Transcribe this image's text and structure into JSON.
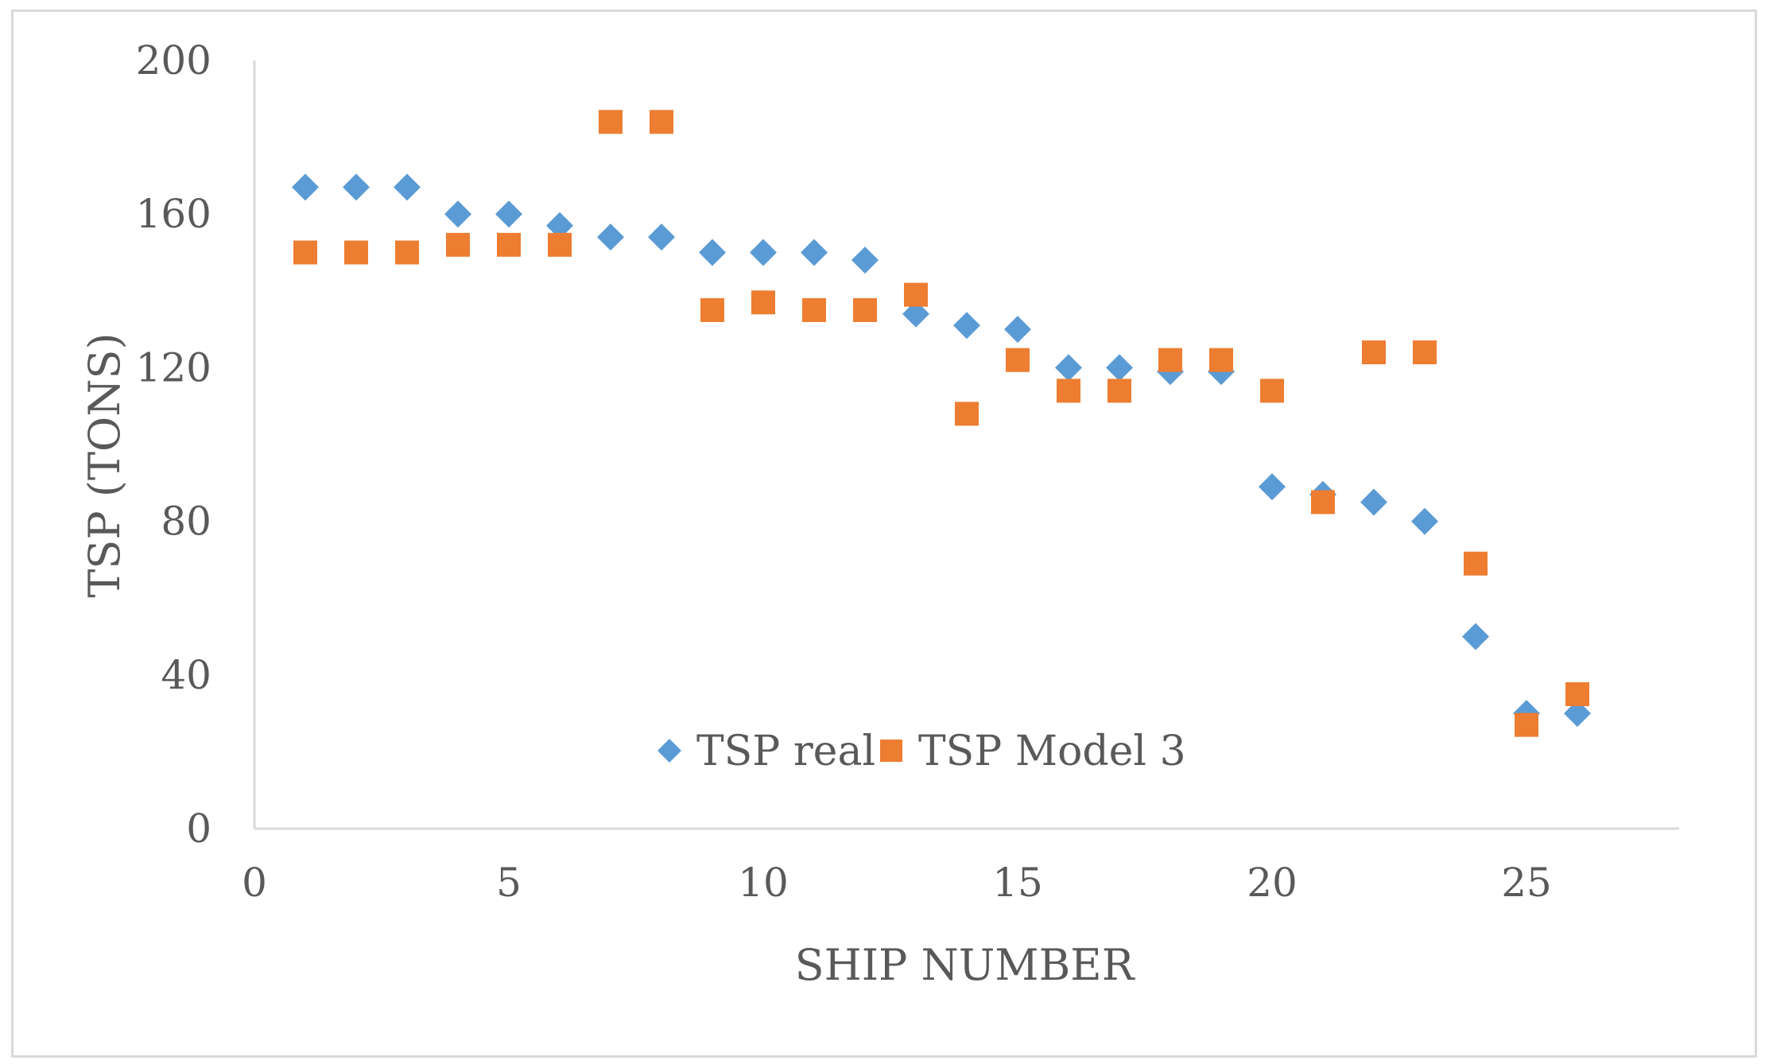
{
  "chart_data": {
    "type": "scatter",
    "title": "",
    "xlabel": "SHIP NUMBER",
    "ylabel": "TSP (TONS)",
    "xlim": [
      0,
      28
    ],
    "ylim": [
      0,
      200
    ],
    "xticks": [
      0,
      5,
      10,
      15,
      20,
      25
    ],
    "yticks": [
      0,
      40,
      80,
      120,
      160,
      200
    ],
    "grid": false,
    "legend_position": "bottom-center",
    "x": [
      1,
      2,
      3,
      4,
      5,
      6,
      7,
      8,
      9,
      10,
      11,
      12,
      13,
      14,
      15,
      16,
      17,
      18,
      19,
      20,
      21,
      22,
      23,
      24,
      25,
      26
    ],
    "series": [
      {
        "name": "TSP real",
        "marker": "diamond",
        "color": "#5b9bd5",
        "values": [
          167,
          167,
          167,
          160,
          160,
          157,
          154,
          154,
          150,
          150,
          150,
          148,
          134,
          131,
          130,
          120,
          120,
          119,
          119,
          89,
          87,
          85,
          80,
          50,
          30,
          30
        ]
      },
      {
        "name": "TSP Model 3",
        "marker": "square",
        "color": "#ed7d31",
        "values": [
          150,
          150,
          150,
          152,
          152,
          152,
          184,
          184,
          135,
          137,
          135,
          135,
          139,
          108,
          122,
          114,
          114,
          122,
          122,
          114,
          85,
          124,
          124,
          69,
          27,
          35
        ]
      }
    ]
  }
}
